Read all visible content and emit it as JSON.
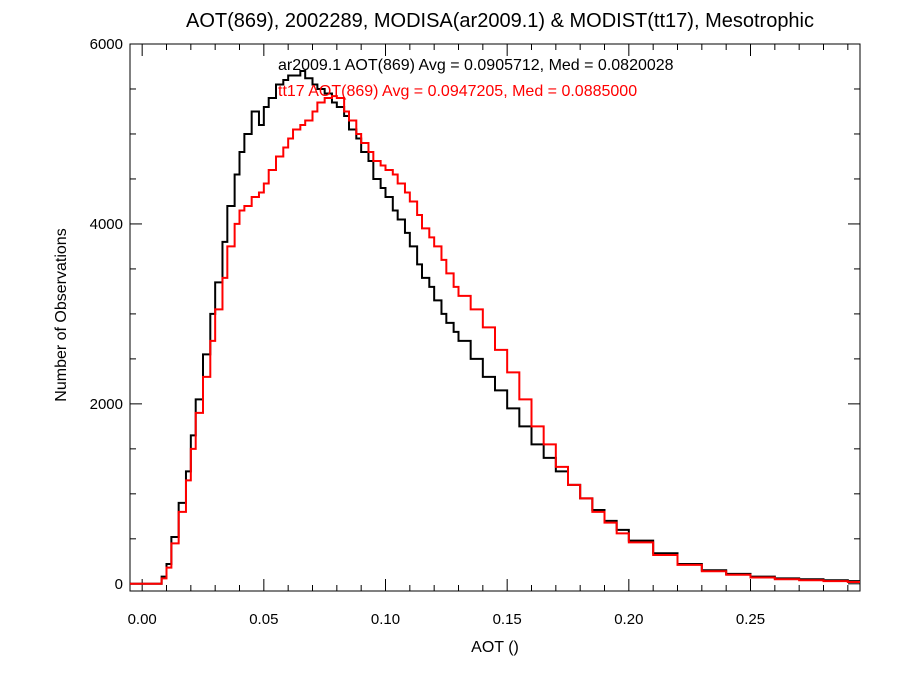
{
  "chart_data": {
    "type": "line",
    "title": "AOT(869), 2002289, MODISA(ar2009.1) & MODIST(tt17), Mesotrophic",
    "xlabel": "AOT ()",
    "ylabel": "Number of Observations",
    "xlim": [
      -0.005,
      0.295
    ],
    "ylim": [
      -80,
      6000
    ],
    "xticks": [
      0.0,
      0.05,
      0.1,
      0.15,
      0.2,
      0.25
    ],
    "xtick_labels": [
      "0.00",
      "0.05",
      "0.10",
      "0.15",
      "0.20",
      "0.25"
    ],
    "yticks": [
      0,
      2000,
      4000,
      6000
    ],
    "ytick_labels": [
      "0",
      "2000",
      "4000",
      "6000"
    ],
    "style": "step",
    "grid": false,
    "series": [
      {
        "name": "ar2009.1",
        "color": "#000000",
        "annotation": "ar2009.1 AOT(869) Avg = 0.0905712, Med = 0.0820028",
        "x": [
          -0.005,
          0.005,
          0.008,
          0.01,
          0.012,
          0.015,
          0.018,
          0.02,
          0.022,
          0.025,
          0.028,
          0.03,
          0.033,
          0.035,
          0.038,
          0.04,
          0.042,
          0.045,
          0.048,
          0.05,
          0.052,
          0.055,
          0.058,
          0.06,
          0.062,
          0.065,
          0.067,
          0.07,
          0.072,
          0.075,
          0.078,
          0.08,
          0.083,
          0.085,
          0.088,
          0.09,
          0.093,
          0.095,
          0.098,
          0.1,
          0.103,
          0.105,
          0.108,
          0.11,
          0.113,
          0.115,
          0.118,
          0.12,
          0.123,
          0.125,
          0.128,
          0.13,
          0.135,
          0.14,
          0.145,
          0.15,
          0.155,
          0.16,
          0.165,
          0.17,
          0.175,
          0.18,
          0.185,
          0.19,
          0.195,
          0.2,
          0.21,
          0.22,
          0.23,
          0.24,
          0.25,
          0.26,
          0.27,
          0.28,
          0.29,
          0.295
        ],
        "y": [
          0,
          0,
          80,
          220,
          520,
          900,
          1250,
          1650,
          2050,
          2550,
          3000,
          3350,
          3800,
          4200,
          4550,
          4800,
          5000,
          5250,
          5100,
          5300,
          5400,
          5550,
          5600,
          5650,
          5650,
          5700,
          5620,
          5550,
          5500,
          5450,
          5350,
          5300,
          5200,
          5050,
          4950,
          4800,
          4700,
          4500,
          4400,
          4300,
          4150,
          4050,
          3900,
          3750,
          3550,
          3400,
          3300,
          3150,
          3000,
          2900,
          2800,
          2700,
          2500,
          2300,
          2150,
          1950,
          1750,
          1550,
          1400,
          1250,
          1100,
          950,
          820,
          700,
          600,
          480,
          340,
          220,
          150,
          110,
          80,
          60,
          50,
          40,
          30,
          30
        ]
      },
      {
        "name": "tt17",
        "color": "#ff0000",
        "annotation": "tt17 AOT(869) Avg = 0.0947205, Med = 0.0885000",
        "x": [
          -0.005,
          0.005,
          0.008,
          0.01,
          0.012,
          0.015,
          0.018,
          0.02,
          0.022,
          0.025,
          0.028,
          0.03,
          0.033,
          0.035,
          0.038,
          0.04,
          0.042,
          0.045,
          0.048,
          0.05,
          0.052,
          0.055,
          0.058,
          0.06,
          0.062,
          0.065,
          0.067,
          0.07,
          0.072,
          0.075,
          0.078,
          0.08,
          0.083,
          0.085,
          0.088,
          0.09,
          0.093,
          0.095,
          0.098,
          0.1,
          0.103,
          0.105,
          0.108,
          0.11,
          0.113,
          0.115,
          0.118,
          0.12,
          0.123,
          0.125,
          0.128,
          0.13,
          0.135,
          0.14,
          0.145,
          0.15,
          0.155,
          0.16,
          0.165,
          0.17,
          0.175,
          0.18,
          0.185,
          0.19,
          0.195,
          0.2,
          0.21,
          0.22,
          0.23,
          0.24,
          0.25,
          0.26,
          0.27,
          0.28,
          0.29,
          0.295
        ],
        "y": [
          0,
          0,
          60,
          180,
          450,
          800,
          1150,
          1500,
          1900,
          2300,
          2700,
          3050,
          3400,
          3750,
          4000,
          4150,
          4200,
          4300,
          4350,
          4450,
          4600,
          4750,
          4850,
          4950,
          5050,
          5100,
          5150,
          5250,
          5350,
          5400,
          5420,
          5400,
          5250,
          5150,
          5000,
          4900,
          4800,
          4700,
          4650,
          4600,
          4550,
          4450,
          4350,
          4250,
          4100,
          3950,
          3850,
          3750,
          3600,
          3450,
          3300,
          3200,
          3050,
          2850,
          2600,
          2350,
          2050,
          1750,
          1550,
          1300,
          1100,
          950,
          800,
          680,
          560,
          460,
          320,
          210,
          140,
          100,
          70,
          50,
          40,
          30,
          20,
          20
        ]
      }
    ]
  }
}
